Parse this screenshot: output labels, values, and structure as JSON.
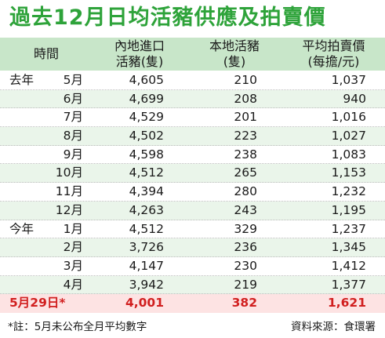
{
  "title": "過去12月日均活豬供應及拍賣價",
  "headers": {
    "time": "時間",
    "imported_line1": "內地進口",
    "imported_line2": "活豬(隻)",
    "local_line1": "本地活豬",
    "local_line2": "(隻)",
    "price_line1": "平均拍賣價",
    "price_line2": "(每擔/元)"
  },
  "rows": [
    {
      "year": "去年",
      "month": "5月",
      "imported": "4,605",
      "local": "210",
      "price": "1,037"
    },
    {
      "year": "",
      "month": "6月",
      "imported": "4,699",
      "local": "208",
      "price": "940"
    },
    {
      "year": "",
      "month": "7月",
      "imported": "4,529",
      "local": "201",
      "price": "1,016"
    },
    {
      "year": "",
      "month": "8月",
      "imported": "4,502",
      "local": "223",
      "price": "1,027"
    },
    {
      "year": "",
      "month": "9月",
      "imported": "4,598",
      "local": "238",
      "price": "1,083"
    },
    {
      "year": "",
      "month": "10月",
      "imported": "4,512",
      "local": "265",
      "price": "1,153"
    },
    {
      "year": "",
      "month": "11月",
      "imported": "4,394",
      "local": "280",
      "price": "1,232"
    },
    {
      "year": "",
      "month": "12月",
      "imported": "4,263",
      "local": "243",
      "price": "1,195"
    },
    {
      "year": "今年",
      "month": "1月",
      "imported": "4,512",
      "local": "329",
      "price": "1,237"
    },
    {
      "year": "",
      "month": "2月",
      "imported": "3,726",
      "local": "236",
      "price": "1,345"
    },
    {
      "year": "",
      "month": "3月",
      "imported": "4,147",
      "local": "230",
      "price": "1,412"
    },
    {
      "year": "",
      "month": "4月",
      "imported": "3,942",
      "local": "219",
      "price": "1,377"
    }
  ],
  "latest": {
    "date": "5月29日*",
    "imported": "4,001",
    "local": "382",
    "price": "1,621"
  },
  "footer": {
    "note": "*註：5月未公布全月平均數字",
    "source": "資料來源：食環署"
  },
  "colors": {
    "title": "#2ea33a",
    "header_bg": "#c8e6c9",
    "alt_row_bg": "#eaf5ea",
    "highlight_bg": "#fde3e3",
    "highlight_text": "#d11f1f"
  }
}
